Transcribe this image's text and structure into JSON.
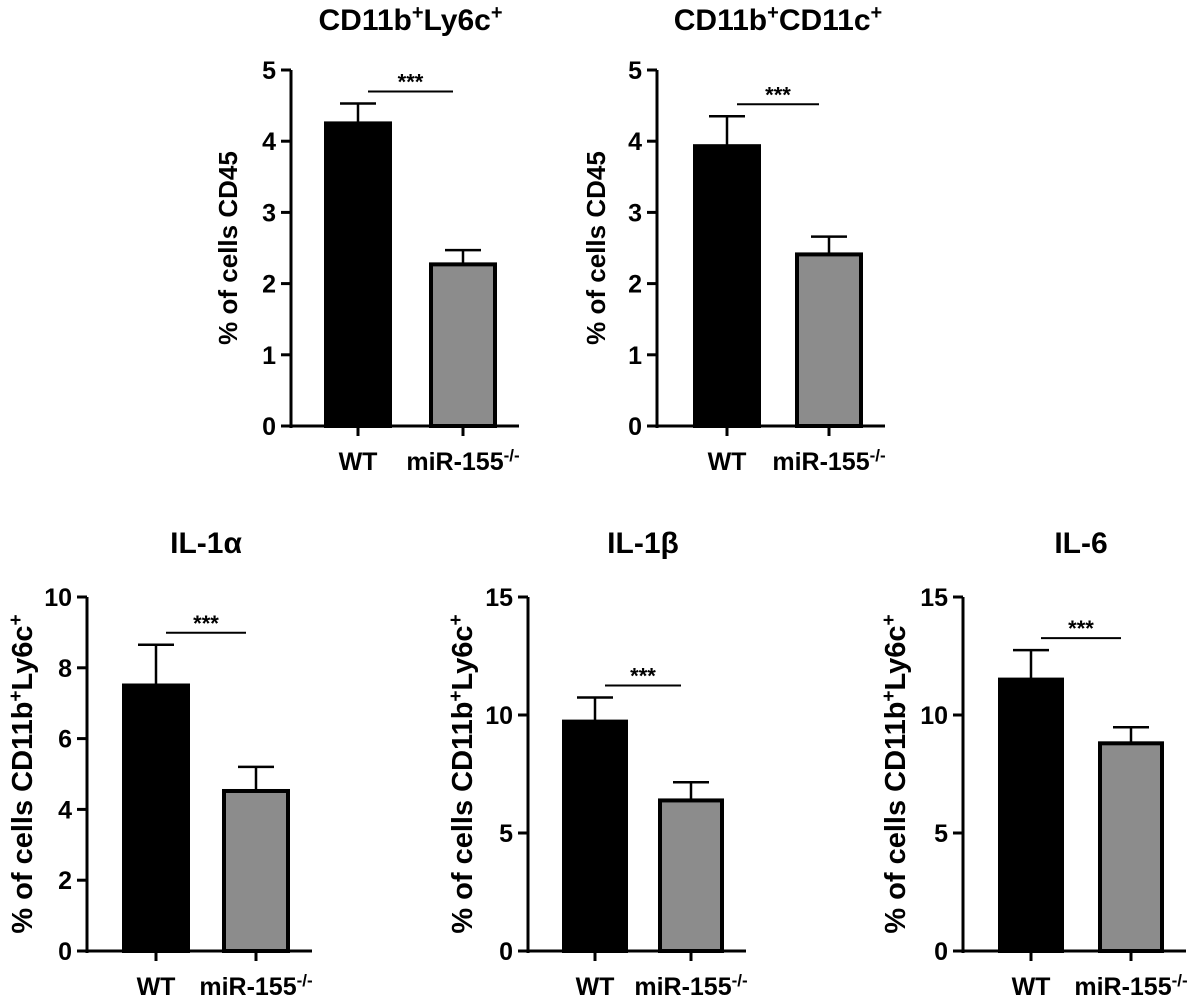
{
  "colors": {
    "wt_bar": "#000000",
    "ko_bar": "#8c8c8c",
    "axis": "#000000"
  },
  "chart_data": [
    {
      "type": "bar",
      "title": "CD11b⁺Ly6c⁺",
      "ylabel": "% of cells CD45",
      "categories": [
        "WT",
        "miR-155⁻/⁻"
      ],
      "values": [
        4.25,
        2.27
      ],
      "errors": [
        0.28,
        0.2
      ],
      "ylim": [
        0,
        5
      ],
      "yticks": [
        "0",
        "1",
        "2",
        "3",
        "4",
        "5"
      ],
      "significance": "***"
    },
    {
      "type": "bar",
      "title": "CD11b⁺CD11c⁺",
      "ylabel": "% of cells CD45",
      "categories": [
        "WT",
        "miR-155⁻/⁻"
      ],
      "values": [
        3.93,
        2.41
      ],
      "errors": [
        0.42,
        0.25
      ],
      "ylim": [
        0,
        5
      ],
      "yticks": [
        "0",
        "1",
        "2",
        "3",
        "4",
        "5"
      ],
      "significance": "***"
    },
    {
      "type": "bar",
      "title": "IL-1α",
      "ylabel": "% of cells CD11b⁺Ly6c⁺",
      "categories": [
        "WT",
        "miR-155⁻/⁻"
      ],
      "values": [
        7.5,
        4.52
      ],
      "errors": [
        1.15,
        0.68
      ],
      "ylim": [
        0,
        10
      ],
      "yticks": [
        "0",
        "2",
        "4",
        "6",
        "8",
        "10"
      ],
      "significance": "***"
    },
    {
      "type": "bar",
      "title": "IL-1β",
      "ylabel": "% of cells CD11b⁺Ly6c⁺",
      "categories": [
        "WT",
        "miR-155⁻/⁻"
      ],
      "values": [
        9.72,
        6.38
      ],
      "errors": [
        1.02,
        0.77
      ],
      "ylim": [
        0,
        15
      ],
      "yticks": [
        "0",
        "5",
        "10",
        "15"
      ],
      "significance": "***"
    },
    {
      "type": "bar",
      "title": "IL-6",
      "ylabel": "% of cells CD11b⁺Ly6c⁺",
      "categories": [
        "WT",
        "miR-155⁻/⁻"
      ],
      "values": [
        11.5,
        8.8
      ],
      "errors": [
        1.25,
        0.68
      ],
      "ylim": [
        0,
        15
      ],
      "yticks": [
        "0",
        "5",
        "10",
        "15"
      ],
      "significance": "***"
    }
  ]
}
